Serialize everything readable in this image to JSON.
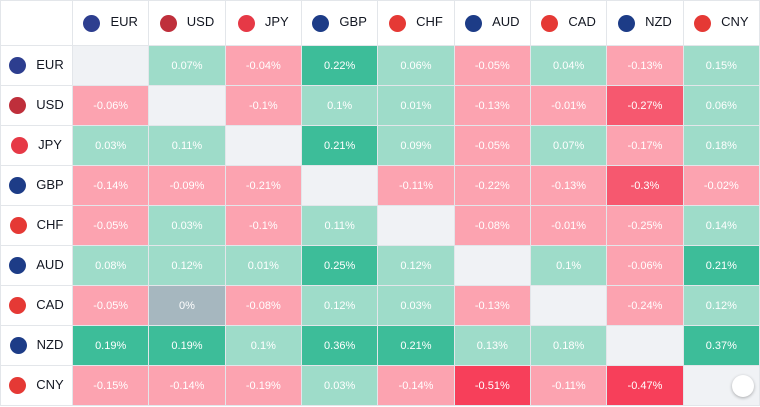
{
  "columns": [
    "EUR",
    "USD",
    "JPY",
    "GBP",
    "CHF",
    "AUD",
    "CAD",
    "NZD",
    "CNY"
  ],
  "rows": [
    {
      "label": "EUR",
      "cells": [
        null,
        "0.07%",
        "-0.04%",
        "0.22%",
        "0.06%",
        "-0.05%",
        "0.04%",
        "-0.13%",
        "0.15%"
      ]
    },
    {
      "label": "USD",
      "cells": [
        "-0.06%",
        null,
        "-0.1%",
        "0.1%",
        "0.01%",
        "-0.13%",
        "-0.01%",
        "-0.27%",
        "0.06%"
      ]
    },
    {
      "label": "JPY",
      "cells": [
        "0.03%",
        "0.11%",
        null,
        "0.21%",
        "0.09%",
        "-0.05%",
        "0.07%",
        "-0.17%",
        "0.18%"
      ]
    },
    {
      "label": "GBP",
      "cells": [
        "-0.14%",
        "-0.09%",
        "-0.21%",
        null,
        "-0.11%",
        "-0.22%",
        "-0.13%",
        "-0.3%",
        "-0.02%"
      ]
    },
    {
      "label": "CHF",
      "cells": [
        "-0.05%",
        "0.03%",
        "-0.1%",
        "0.11%",
        null,
        "-0.08%",
        "-0.01%",
        "-0.25%",
        "0.14%"
      ]
    },
    {
      "label": "AUD",
      "cells": [
        "0.08%",
        "0.12%",
        "0.01%",
        "0.25%",
        "0.12%",
        null,
        "0.1%",
        "-0.06%",
        "0.21%"
      ]
    },
    {
      "label": "CAD",
      "cells": [
        "-0.05%",
        "0%",
        "-0.08%",
        "0.12%",
        "0.03%",
        "-0.13%",
        null,
        "-0.24%",
        "0.12%"
      ]
    },
    {
      "label": "NZD",
      "cells": [
        "0.19%",
        "0.19%",
        "0.1%",
        "0.36%",
        "0.21%",
        "0.13%",
        "0.18%",
        null,
        "0.37%"
      ]
    },
    {
      "label": "CNY",
      "cells": [
        "-0.15%",
        "-0.14%",
        "-0.19%",
        "0.03%",
        "-0.14%",
        "-0.51%",
        "-0.11%",
        "-0.47%",
        null
      ]
    }
  ]
}
